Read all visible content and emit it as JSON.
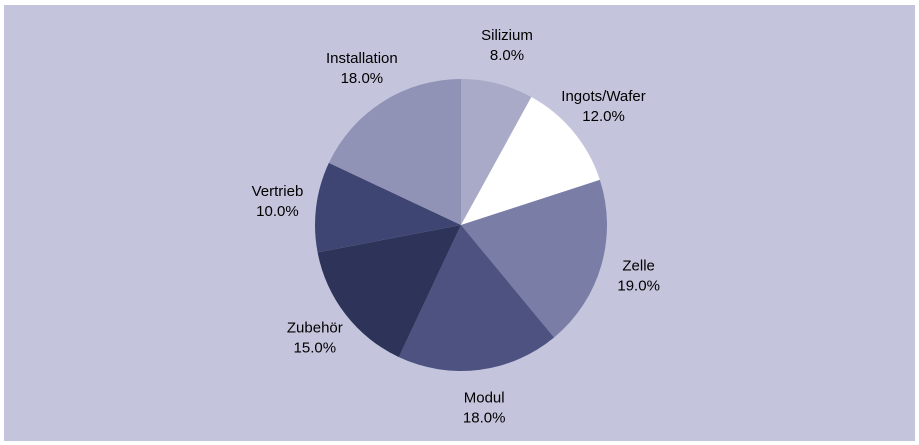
{
  "chart_data": {
    "type": "pie",
    "categories": [
      "Silizium",
      "Ingots/Wafer",
      "Zelle",
      "Modul",
      "Zubehör",
      "Vertrieb",
      "Installation"
    ],
    "values": [
      8,
      12,
      19,
      18,
      15,
      10,
      18
    ],
    "value_labels": [
      "8.0%",
      "12.0%",
      "19.0%",
      "18.0%",
      "15.0%",
      "10.0%",
      "18.0%"
    ],
    "colors": [
      "#a9aac8",
      "#ffffff",
      "#7a7da6",
      "#4d5280",
      "#2e3459",
      "#3f4572",
      "#9092b6"
    ]
  }
}
